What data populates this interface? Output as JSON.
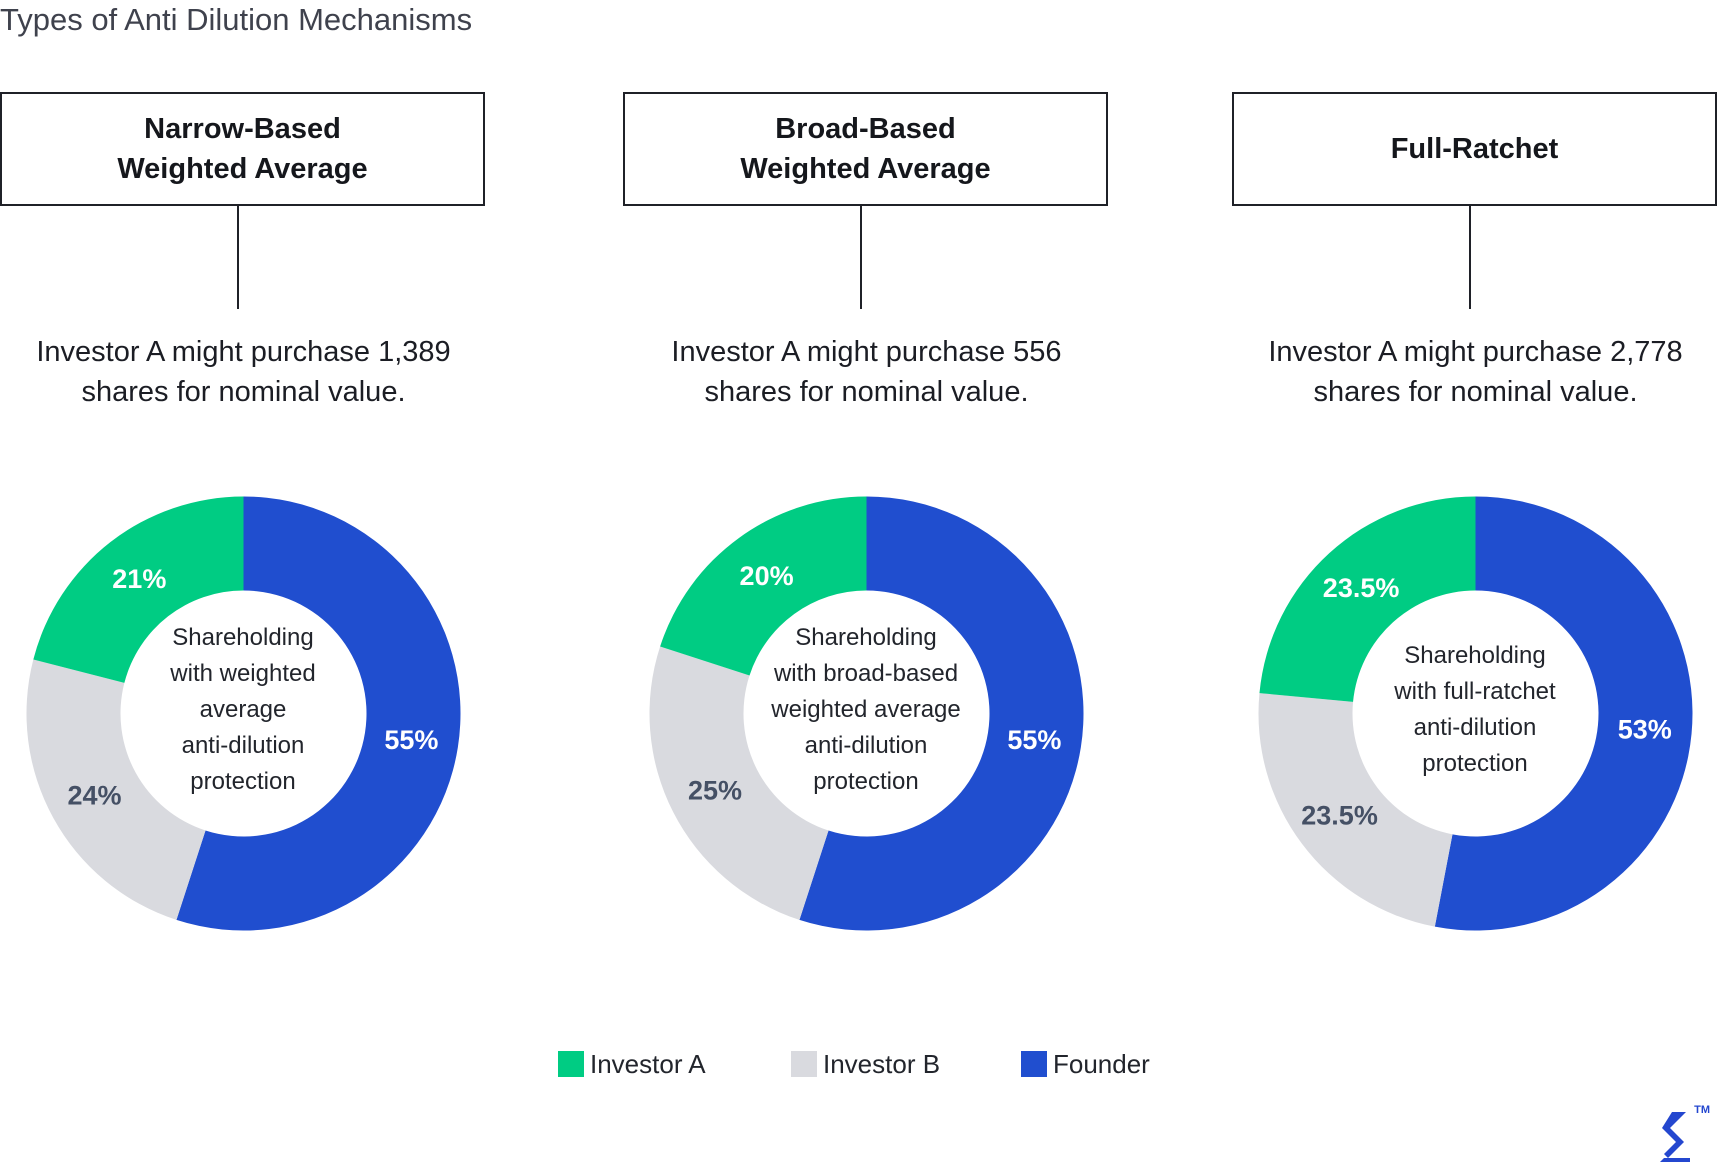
{
  "title": "Types of Anti Dilution Mechanisms",
  "colors": {
    "investor_a": "#00cc83",
    "investor_b": "#d9dadf",
    "founder": "#204ecf",
    "label_on_dark": "#ffffff",
    "label_on_light": "#455065"
  },
  "panels": [
    {
      "heading": "Narrow-Based\nWeighted Average",
      "purchase_text": "Investor A might purchase 1,389\nshares for nominal value.",
      "center_text": "Shareholding\nwith weighted\naverage\nanti-dilution\nprotection"
    },
    {
      "heading": "Broad-Based\nWeighted Average",
      "purchase_text": "Investor A might purchase 556\nshares for nominal value.",
      "center_text": "Shareholding\nwith broad-based\nweighted average\nanti-dilution\nprotection"
    },
    {
      "heading": "Full-Ratchet",
      "purchase_text": "Investor A might purchase 2,778\nshares for nominal value.",
      "center_text": "Shareholding\nwith full-ratchet\nanti-dilution\nprotection"
    }
  ],
  "chart_data": [
    {
      "type": "pie",
      "donut": true,
      "categories": [
        "Founder",
        "Investor B",
        "Investor A"
      ],
      "values": [
        55,
        24,
        21
      ],
      "labels": [
        "55%",
        "24%",
        "21%"
      ]
    },
    {
      "type": "pie",
      "donut": true,
      "categories": [
        "Founder",
        "Investor B",
        "Investor A"
      ],
      "values": [
        55,
        25,
        20
      ],
      "labels": [
        "55%",
        "25%",
        "20%"
      ]
    },
    {
      "type": "pie",
      "donut": true,
      "categories": [
        "Founder",
        "Investor B",
        "Investor A"
      ],
      "values": [
        53,
        23.5,
        23.5
      ],
      "labels": [
        "53%",
        "23.5%",
        "23.5%"
      ]
    }
  ],
  "legend": [
    {
      "label": "Investor A"
    },
    {
      "label": "Investor B"
    },
    {
      "label": "Founder"
    }
  ]
}
